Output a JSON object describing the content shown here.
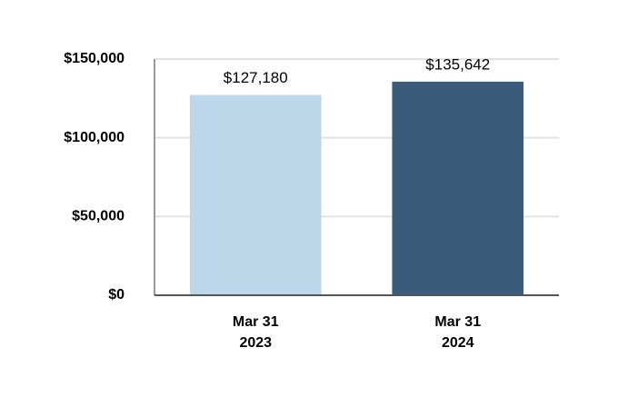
{
  "chart_data": {
    "type": "bar",
    "categories": [
      [
        "Mar 31",
        "2023"
      ],
      [
        "Mar 31",
        "2024"
      ]
    ],
    "values": [
      127180,
      135642
    ],
    "value_labels": [
      "$127,180",
      "$135,642"
    ],
    "colors": [
      "#bcd6ea",
      "#3b5b7a"
    ],
    "ylim": [
      0,
      150000
    ],
    "yticks": [
      {
        "value": 0,
        "label": "$0"
      },
      {
        "value": 50000,
        "label": "$50,000"
      },
      {
        "value": 100000,
        "label": "$100,000"
      },
      {
        "value": 150000,
        "label": "$150,000"
      }
    ],
    "grid": true
  }
}
